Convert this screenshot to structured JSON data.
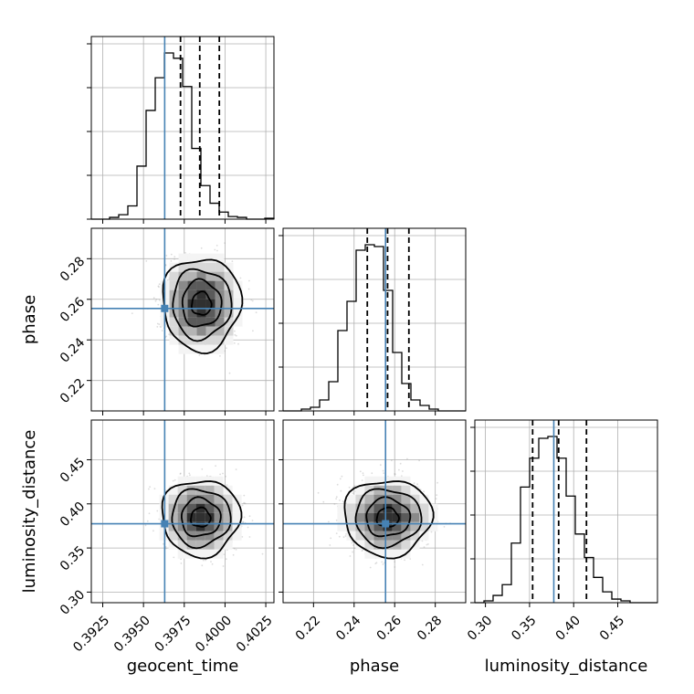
{
  "chart_data": {
    "type": "corner",
    "parameters": [
      "geocent_time",
      "phase",
      "luminosity_distance"
    ],
    "axis_labels": {
      "x": [
        "geocent_time",
        "phase",
        "luminosity_distance"
      ],
      "y": [
        "",
        "phase",
        "luminosity_distance"
      ]
    },
    "ranges": [
      [
        0.3918,
        0.403
      ],
      [
        0.205,
        0.295
      ],
      [
        0.288,
        0.495
      ]
    ],
    "ticks": {
      "geocent_time": {
        "values": [
          0.3925,
          0.395,
          0.3975,
          0.4,
          0.4025
        ],
        "labels": [
          "0.3925",
          "0.3950",
          "0.3975",
          "0.4000",
          "0.4025"
        ]
      },
      "phase": {
        "values": [
          0.22,
          0.24,
          0.26,
          0.28
        ],
        "labels": [
          "0.22",
          "0.24",
          "0.26",
          "0.28"
        ]
      },
      "luminosity_distance": {
        "values": [
          0.3,
          0.35,
          0.4,
          0.45
        ],
        "labels": [
          "0.30",
          "0.35",
          "0.40",
          "0.45"
        ]
      }
    },
    "truths": [
      0.3963,
      0.2555,
      0.3775
    ],
    "quantiles": [
      [
        0.39727,
        0.39845,
        0.39965
      ],
      [
        0.2465,
        0.2565,
        0.267
      ],
      [
        0.3535,
        0.383,
        0.4145
      ]
    ],
    "histograms": [
      {
        "edges_start": 0.3918,
        "bin_width": 0.00056,
        "counts": [
          0,
          0,
          2,
          5,
          15,
          60,
          123,
          160,
          188,
          182,
          150,
          80,
          38,
          18,
          8,
          3,
          2,
          0,
          0,
          1
        ]
      },
      {
        "edges_start": 0.205,
        "bin_width": 0.0045,
        "counts": [
          0,
          0,
          1,
          2,
          6,
          16,
          44,
          60,
          88,
          91,
          90,
          66,
          32,
          15,
          6,
          3,
          1,
          0,
          0,
          0
        ]
      },
      {
        "edges_start": 0.288,
        "bin_width": 0.01035,
        "counts": [
          0,
          1,
          4,
          10,
          33,
          64,
          80,
          91,
          92,
          80,
          59,
          38,
          25,
          14,
          6,
          2,
          1,
          0,
          0,
          0
        ]
      }
    ],
    "joint": [
      {
        "x": 0,
        "y": 1,
        "center": [
          0.39855,
          0.2578
        ],
        "spread": [
          0.001,
          0.0095
        ]
      },
      {
        "x": 0,
        "y": 2,
        "center": [
          0.3985,
          0.3845
        ],
        "spread": [
          0.001,
          0.018
        ]
      },
      {
        "x": 1,
        "y": 2,
        "center": [
          0.2565,
          0.3845
        ],
        "spread": [
          0.009,
          0.018
        ]
      }
    ],
    "colors": {
      "truth": "#4682b4",
      "hist": "#000000",
      "grid": "#b0b0b0",
      "scatter": "#9a9a9a"
    },
    "grid": true,
    "legend": "none"
  }
}
